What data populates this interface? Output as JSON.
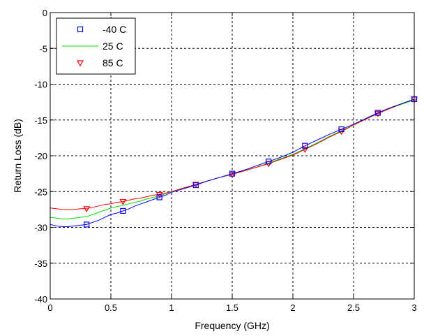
{
  "chart_data": {
    "type": "line",
    "title": "",
    "xlabel": "Frequency (GHz)",
    "ylabel": "Return Loss (dB)",
    "xlim": [
      0,
      3
    ],
    "ylim": [
      -40,
      0
    ],
    "xticks": [
      0,
      0.5,
      1,
      1.5,
      2,
      2.5,
      3
    ],
    "xtick_labels": [
      "0",
      "0.5",
      "1",
      "1.5",
      "2",
      "2.5",
      "3"
    ],
    "yticks": [
      0,
      -5,
      -10,
      -15,
      -20,
      -25,
      -30,
      -35,
      -40
    ],
    "ytick_labels": [
      "0",
      "-5",
      "-10",
      "-15",
      "-20",
      "-25",
      "-30",
      "-35",
      "-40"
    ],
    "grid": true,
    "legend_position": "top-left",
    "series": [
      {
        "name": "-40 C",
        "color": "#0000ff",
        "marker": "square",
        "x": [
          0,
          0.05,
          0.1,
          0.15,
          0.2,
          0.25,
          0.3,
          0.35,
          0.4,
          0.45,
          0.5,
          0.55,
          0.6,
          0.65,
          0.7,
          0.75,
          0.8,
          0.85,
          0.9,
          0.95,
          1.0,
          1.1,
          1.2,
          1.3,
          1.4,
          1.5,
          1.6,
          1.7,
          1.8,
          1.9,
          2.0,
          2.1,
          2.2,
          2.3,
          2.4,
          2.5,
          2.6,
          2.7,
          2.8,
          2.9,
          3.0
        ],
        "y": [
          -29.6,
          -29.8,
          -29.9,
          -29.9,
          -29.8,
          -29.7,
          -29.6,
          -29.3,
          -29.0,
          -28.6,
          -28.2,
          -28.0,
          -27.7,
          -27.4,
          -27.0,
          -26.7,
          -26.4,
          -26.1,
          -25.8,
          -25.5,
          -25.1,
          -24.6,
          -24.1,
          -23.5,
          -23.0,
          -22.5,
          -22.0,
          -21.4,
          -20.8,
          -20.2,
          -19.5,
          -18.6,
          -17.8,
          -17.0,
          -16.3,
          -15.6,
          -14.8,
          -14.0,
          -13.3,
          -12.7,
          -12.1
        ],
        "markers_x": [
          0.3,
          0.6,
          0.9,
          1.2,
          1.5,
          1.8,
          2.1,
          2.4,
          2.7,
          3.0
        ]
      },
      {
        "name": "25 C",
        "color": "#00dd00",
        "marker": "none",
        "x": [
          0,
          0.05,
          0.1,
          0.15,
          0.2,
          0.25,
          0.3,
          0.35,
          0.4,
          0.45,
          0.5,
          0.55,
          0.6,
          0.65,
          0.7,
          0.75,
          0.8,
          0.85,
          0.9,
          0.95,
          1.0,
          1.1,
          1.2,
          1.3,
          1.4,
          1.5,
          1.6,
          1.7,
          1.8,
          1.9,
          2.0,
          2.1,
          2.2,
          2.3,
          2.4,
          2.5,
          2.6,
          2.7,
          2.8,
          2.9,
          3.0
        ],
        "y": [
          -28.6,
          -28.7,
          -28.8,
          -28.8,
          -28.7,
          -28.6,
          -28.5,
          -28.2,
          -27.9,
          -27.6,
          -27.3,
          -27.1,
          -26.9,
          -26.7,
          -26.5,
          -26.3,
          -26.0,
          -25.8,
          -25.6,
          -25.3,
          -25.0,
          -24.5,
          -24.0,
          -23.5,
          -23.0,
          -22.6,
          -22.1,
          -21.6,
          -21.0,
          -20.4,
          -19.8,
          -19.0,
          -18.2,
          -17.3,
          -16.5,
          -15.7,
          -14.9,
          -14.1,
          -13.4,
          -12.8,
          -12.2
        ]
      },
      {
        "name": "85 C",
        "color": "#ff0000",
        "marker": "triangle-down",
        "x": [
          0,
          0.05,
          0.1,
          0.15,
          0.2,
          0.25,
          0.3,
          0.35,
          0.4,
          0.45,
          0.5,
          0.55,
          0.6,
          0.65,
          0.7,
          0.75,
          0.8,
          0.85,
          0.9,
          0.95,
          1.0,
          1.1,
          1.2,
          1.3,
          1.4,
          1.5,
          1.6,
          1.7,
          1.8,
          1.9,
          2.0,
          2.1,
          2.2,
          2.3,
          2.4,
          2.5,
          2.6,
          2.7,
          2.8,
          2.9,
          3.0
        ],
        "y": [
          -27.3,
          -27.4,
          -27.5,
          -27.5,
          -27.5,
          -27.4,
          -27.4,
          -27.2,
          -27.0,
          -26.8,
          -26.7,
          -26.5,
          -26.4,
          -26.2,
          -26.0,
          -25.9,
          -25.7,
          -25.5,
          -25.4,
          -25.2,
          -25.0,
          -24.5,
          -24.0,
          -23.5,
          -23.0,
          -22.6,
          -22.1,
          -21.6,
          -21.1,
          -20.5,
          -19.9,
          -19.1,
          -18.3,
          -17.4,
          -16.6,
          -15.7,
          -14.9,
          -14.1,
          -13.4,
          -12.7,
          -12.1
        ],
        "markers_x": [
          0.3,
          0.6,
          0.9,
          1.2,
          1.5,
          1.8,
          2.1,
          2.4,
          2.7,
          3.0
        ]
      }
    ]
  }
}
